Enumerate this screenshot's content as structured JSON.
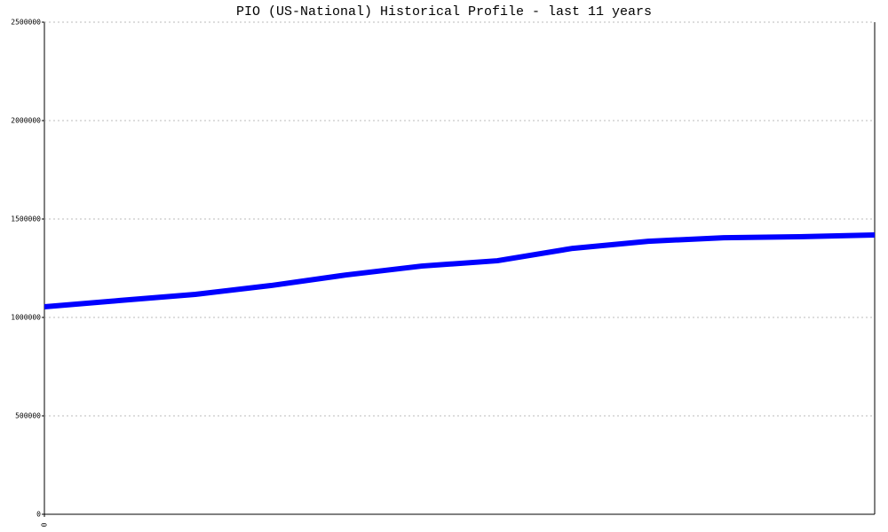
{
  "chart_data": {
    "type": "line",
    "title": "PIO (US-National) Historical Profile - last 11 years",
    "x": [
      0,
      1,
      2,
      3,
      4,
      5,
      6,
      7,
      8,
      9,
      10,
      11
    ],
    "series": [
      {
        "color": "#0000ff",
        "values": [
          1054000,
          1086000,
          1117000,
          1162000,
          1216000,
          1261000,
          1288000,
          1351000,
          1387000,
          1405000,
          1410000,
          1419000
        ]
      }
    ],
    "xlim": [
      0,
      11
    ],
    "xticks": [
      0
    ],
    "ylim": [
      0,
      2500000
    ],
    "yticks": [
      0,
      500000,
      1000000,
      1500000,
      2000000,
      2500000
    ],
    "grid": true
  }
}
